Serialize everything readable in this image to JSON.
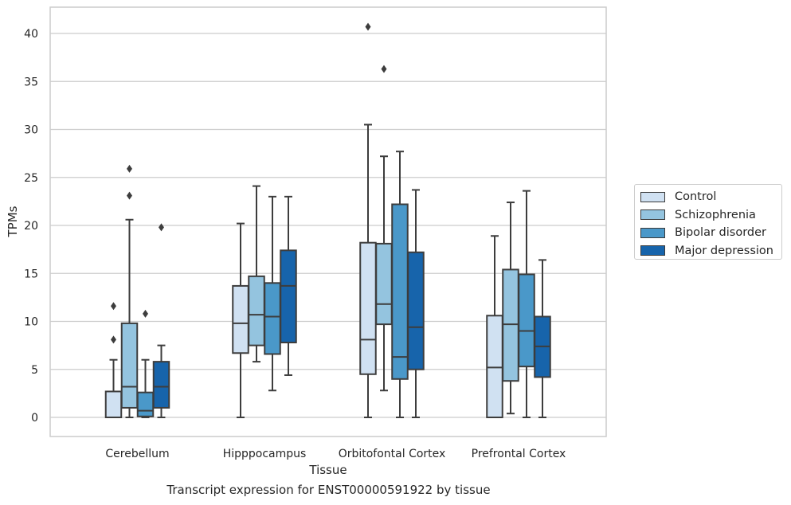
{
  "chart_data": {
    "type": "box",
    "caption": "Transcript expression for ENST00000591922 by tissue",
    "xlabel": "Tissue",
    "ylabel": "TPMs",
    "ylim": [
      -2,
      42.5
    ],
    "yticks": [
      0,
      5,
      10,
      15,
      20,
      25,
      30,
      35,
      40
    ],
    "grid": "horizontal",
    "legend_placement": "right",
    "categories": [
      "Cerebellum",
      "Hipppocampus",
      "Orbitofontal Cortex",
      "Prefrontal Cortex"
    ],
    "series": [
      {
        "name": "Control",
        "color": "#d0e1f2",
        "boxes": [
          {
            "whislo": 0,
            "q1": 0,
            "med": 0,
            "q3": 2.7,
            "whishi": 6.0,
            "fliers": [
              8.1,
              11.6
            ]
          },
          {
            "whislo": 0,
            "q1": 6.7,
            "med": 9.8,
            "q3": 13.7,
            "whishi": 20.2,
            "fliers": []
          },
          {
            "whislo": 0,
            "q1": 4.5,
            "med": 8.1,
            "q3": 18.2,
            "whishi": 30.5,
            "fliers": [
              40.7
            ]
          },
          {
            "whislo": 0,
            "q1": 0,
            "med": 5.2,
            "q3": 10.6,
            "whishi": 18.9,
            "fliers": []
          }
        ]
      },
      {
        "name": "Schizophrenia",
        "color": "#94c4df",
        "boxes": [
          {
            "whislo": 0,
            "q1": 1.0,
            "med": 3.2,
            "q3": 9.8,
            "whishi": 20.6,
            "fliers": [
              23.1,
              25.9
            ]
          },
          {
            "whislo": 5.8,
            "q1": 7.5,
            "med": 10.7,
            "q3": 14.7,
            "whishi": 24.1,
            "fliers": []
          },
          {
            "whislo": 2.8,
            "q1": 9.7,
            "med": 11.8,
            "q3": 18.1,
            "whishi": 27.2,
            "fliers": [
              36.3
            ]
          },
          {
            "whislo": 0.4,
            "q1": 3.8,
            "med": 9.7,
            "q3": 15.4,
            "whishi": 22.4,
            "fliers": []
          }
        ]
      },
      {
        "name": "Bipolar disorder",
        "color": "#4a98c9",
        "boxes": [
          {
            "whislo": 0,
            "q1": 0.1,
            "med": 0.7,
            "q3": 2.6,
            "whishi": 6.0,
            "fliers": [
              10.8
            ]
          },
          {
            "whislo": 2.8,
            "q1": 6.6,
            "med": 10.5,
            "q3": 14.0,
            "whishi": 23.0,
            "fliers": []
          },
          {
            "whislo": 0,
            "q1": 4.0,
            "med": 6.3,
            "q3": 22.2,
            "whishi": 27.7,
            "fliers": []
          },
          {
            "whislo": 0,
            "q1": 5.3,
            "med": 9.0,
            "q3": 14.9,
            "whishi": 23.6,
            "fliers": []
          }
        ]
      },
      {
        "name": "Major depression",
        "color": "#1764ab",
        "boxes": [
          {
            "whislo": 0,
            "q1": 1.0,
            "med": 3.2,
            "q3": 5.8,
            "whishi": 7.5,
            "fliers": [
              19.8
            ]
          },
          {
            "whislo": 4.4,
            "q1": 7.8,
            "med": 13.7,
            "q3": 17.4,
            "whishi": 23.0,
            "fliers": []
          },
          {
            "whislo": 0,
            "q1": 5.0,
            "med": 9.4,
            "q3": 17.2,
            "whishi": 23.7,
            "fliers": []
          },
          {
            "whislo": 0,
            "q1": 4.2,
            "med": 7.4,
            "q3": 10.5,
            "whishi": 16.4,
            "fliers": []
          }
        ]
      }
    ]
  }
}
